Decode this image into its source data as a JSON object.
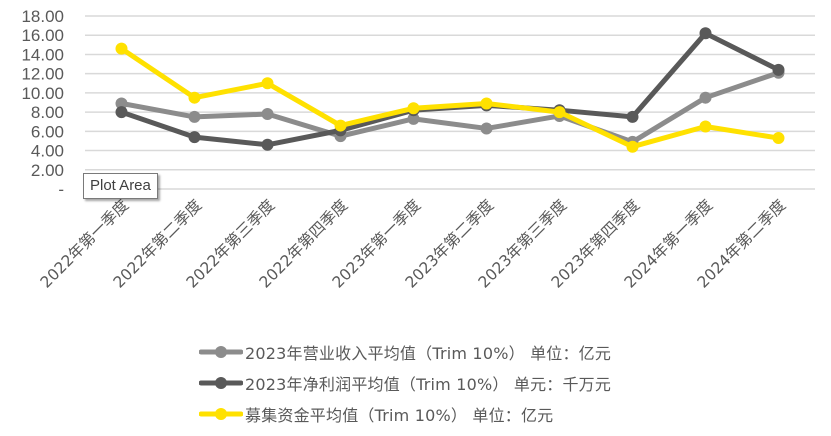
{
  "chart_data": {
    "type": "line",
    "title": "",
    "xlabel": "",
    "ylabel": "",
    "ylim": [
      0,
      18
    ],
    "yticks": [
      "-",
      "2.00",
      "4.00",
      "6.00",
      "8.00",
      "10.00",
      "12.00",
      "14.00",
      "16.00",
      "18.00"
    ],
    "grid": true,
    "legend_position": "bottom",
    "categories": [
      "2022年第一季度",
      "2022年第二季度",
      "2022年第三季度",
      "2022年第四季度",
      "2023年第一季度",
      "2023年第二季度",
      "2023年第三季度",
      "2023年第四季度",
      "2024年第一季度",
      "2024年第二季度"
    ],
    "series": [
      {
        "name": "2023年营业收入平均值（Trim 10%） 单位：亿元",
        "color": "#8c8c8c",
        "values": [
          8.9,
          7.5,
          7.8,
          5.5,
          7.3,
          6.3,
          7.6,
          4.9,
          9.5,
          12.1
        ]
      },
      {
        "name": "2023年净利润平均值（Trim 10%） 单元：千万元",
        "color": "#595959",
        "values": [
          8.0,
          5.4,
          4.6,
          6.1,
          8.2,
          8.7,
          8.2,
          7.5,
          16.2,
          12.4
        ]
      },
      {
        "name": "募集资金平均值（Trim 10%） 单位：亿元",
        "color": "#ffe100",
        "values": [
          14.6,
          9.5,
          11.0,
          6.6,
          8.4,
          8.9,
          8.0,
          4.4,
          6.5,
          5.3
        ]
      }
    ]
  },
  "tooltip": {
    "text": "Plot Area"
  },
  "legend": {
    "items": [
      {
        "label": "2023年营业收入平均值（Trim 10%） 单位：亿元",
        "color": "#8c8c8c"
      },
      {
        "label": "2023年净利润平均值（Trim 10%） 单元：千万元",
        "color": "#595959"
      },
      {
        "label": "募集资金平均值（Trim 10%） 单位：亿元",
        "color": "#ffe100"
      }
    ]
  }
}
